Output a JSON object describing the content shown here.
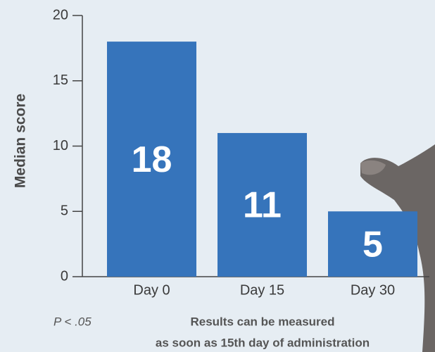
{
  "chart_data": {
    "type": "bar",
    "y_label": "Median score",
    "categories": [
      "Day 0",
      "Day 15",
      "Day 30"
    ],
    "values": [
      18,
      11,
      5
    ],
    "color": "#3674bb",
    "ylim": [
      0,
      20
    ],
    "yticks": [
      0,
      5,
      10,
      15,
      20
    ],
    "footnote": "P < .05",
    "caption": [
      "Results can be measured",
      "as soon as 15th day of administration"
    ]
  }
}
